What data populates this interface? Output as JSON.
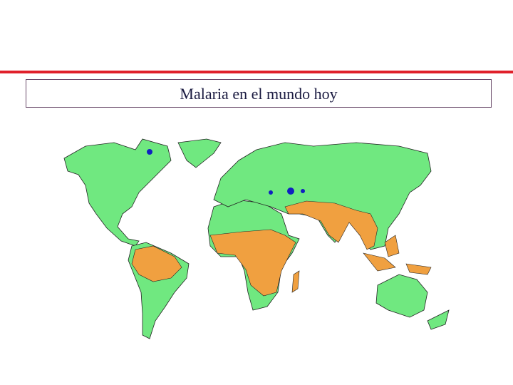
{
  "title": "Malaria en el mundo hoy"
}
